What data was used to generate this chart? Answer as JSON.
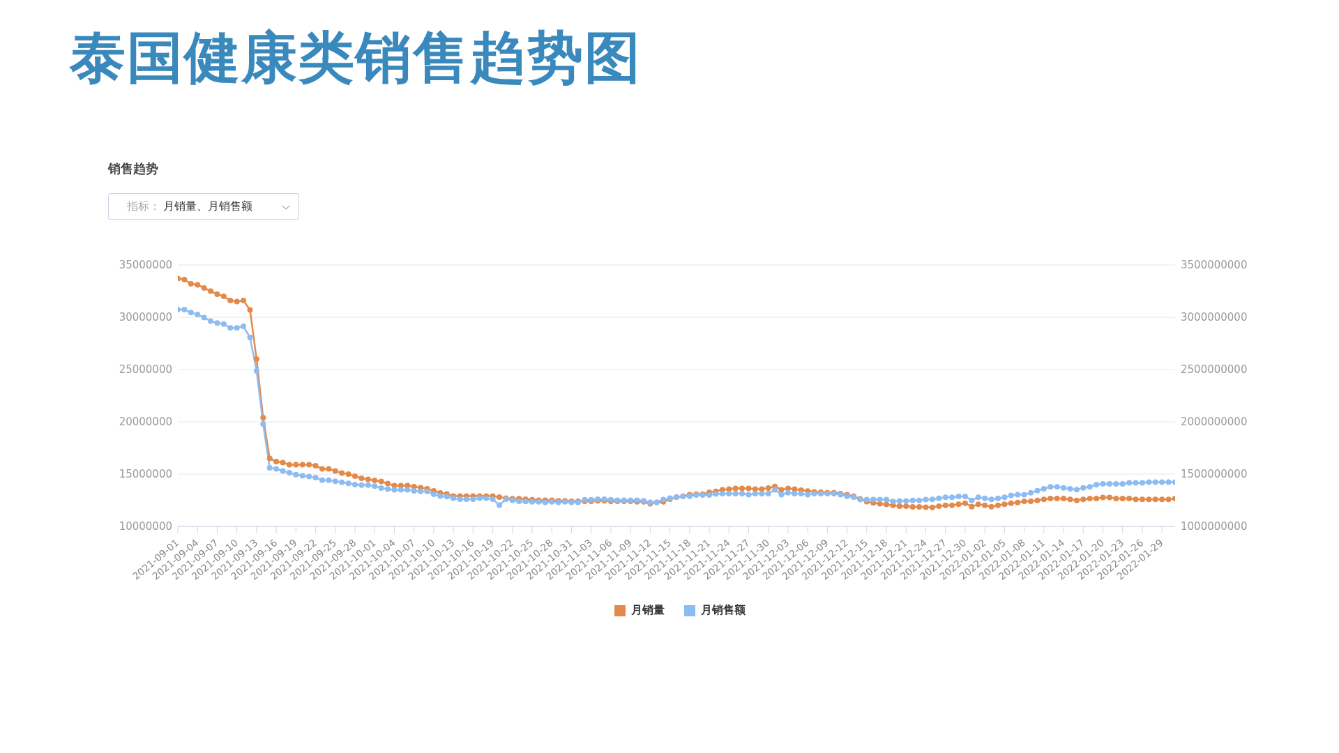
{
  "chart_data": {
    "type": "line",
    "title": "泰国健康类销售趋势图",
    "subtitle": "销售趋势",
    "annotations": [
      "指标：",
      "月销量、月销售额"
    ],
    "x": [
      "2021-09-01",
      "2021-09-02",
      "2021-09-03",
      "2021-09-04",
      "2021-09-05",
      "2021-09-06",
      "2021-09-07",
      "2021-09-08",
      "2021-09-09",
      "2021-09-10",
      "2021-09-11",
      "2021-09-12",
      "2021-09-13",
      "2021-09-14",
      "2021-09-15",
      "2021-09-16",
      "2021-09-17",
      "2021-09-18",
      "2021-09-19",
      "2021-09-20",
      "2021-09-21",
      "2021-09-22",
      "2021-09-23",
      "2021-09-24",
      "2021-09-25",
      "2021-09-26",
      "2021-09-27",
      "2021-09-28",
      "2021-09-29",
      "2021-09-30",
      "2021-10-01",
      "2021-10-02",
      "2021-10-03",
      "2021-10-04",
      "2021-10-05",
      "2021-10-06",
      "2021-10-07",
      "2021-10-08",
      "2021-10-09",
      "2021-10-10",
      "2021-10-11",
      "2021-10-12",
      "2021-10-13",
      "2021-10-14",
      "2021-10-15",
      "2021-10-16",
      "2021-10-17",
      "2021-10-18",
      "2021-10-19",
      "2021-10-20",
      "2021-10-21",
      "2021-10-22",
      "2021-10-23",
      "2021-10-24",
      "2021-10-25",
      "2021-10-26",
      "2021-10-27",
      "2021-10-28",
      "2021-10-29",
      "2021-10-30",
      "2021-10-31",
      "2021-11-01",
      "2021-11-02",
      "2021-11-03",
      "2021-11-04",
      "2021-11-05",
      "2021-11-06",
      "2021-11-07",
      "2021-11-08",
      "2021-11-09",
      "2021-11-10",
      "2021-11-11",
      "2021-11-12",
      "2021-11-13",
      "2021-11-14",
      "2021-11-15",
      "2021-11-16",
      "2021-11-17",
      "2021-11-18",
      "2021-11-19",
      "2021-11-20",
      "2021-11-21",
      "2021-11-22",
      "2021-11-23",
      "2021-11-24",
      "2021-11-25",
      "2021-11-26",
      "2021-11-27",
      "2021-11-28",
      "2021-11-29",
      "2021-11-30",
      "2021-12-01",
      "2021-12-02",
      "2021-12-03",
      "2021-12-04",
      "2021-12-05",
      "2021-12-06",
      "2021-12-07",
      "2021-12-08",
      "2021-12-09",
      "2021-12-10",
      "2021-12-11",
      "2021-12-12",
      "2021-12-13",
      "2021-12-14",
      "2021-12-15",
      "2021-12-16",
      "2021-12-17",
      "2021-12-18",
      "2021-12-19",
      "2021-12-20",
      "2021-12-21",
      "2021-12-22",
      "2021-12-23",
      "2021-12-24",
      "2021-12-25",
      "2021-12-26",
      "2021-12-27",
      "2021-12-28",
      "2021-12-29",
      "2021-12-30",
      "2021-12-31",
      "2022-01-01",
      "2022-01-02",
      "2022-01-03",
      "2022-01-04",
      "2022-01-05",
      "2022-01-06",
      "2022-01-07",
      "2022-01-08",
      "2022-01-09",
      "2022-01-10",
      "2022-01-11",
      "2022-01-12",
      "2022-01-13",
      "2022-01-14",
      "2022-01-15",
      "2022-01-16",
      "2022-01-17",
      "2022-01-18",
      "2022-01-19",
      "2022-01-20",
      "2022-01-21",
      "2022-01-22",
      "2022-01-23",
      "2022-01-24",
      "2022-01-25",
      "2022-01-26",
      "2022-01-27",
      "2022-01-28",
      "2022-01-29",
      "2022-01-30",
      "2022-01-31"
    ],
    "series": [
      {
        "name": "月销量",
        "color": "#e38a4a",
        "values": [
          33700000,
          33600000,
          33200000,
          33100000,
          32800000,
          32500000,
          32200000,
          32000000,
          31600000,
          31500000,
          31600000,
          30700000,
          26000000,
          20400000,
          16500000,
          16200000,
          16100000,
          15900000,
          15900000,
          15900000,
          15900000,
          15800000,
          15500000,
          15500000,
          15300000,
          15100000,
          15000000,
          14800000,
          14600000,
          14500000,
          14400000,
          14300000,
          14100000,
          13900000,
          13900000,
          13900000,
          13800000,
          13700000,
          13600000,
          13400000,
          13200000,
          13100000,
          12900000,
          12900000,
          12900000,
          12900000,
          12900000,
          12900000,
          12900000,
          12800000,
          12700000,
          12650000,
          12650000,
          12600000,
          12550000,
          12500000,
          12500000,
          12500000,
          12450000,
          12450000,
          12400000,
          12400000,
          12400000,
          12400000,
          12450000,
          12450000,
          12400000,
          12400000,
          12400000,
          12400000,
          12350000,
          12350000,
          12170000,
          12300000,
          12350000,
          12600000,
          12800000,
          12880000,
          13040000,
          13090000,
          13090000,
          13250000,
          13350000,
          13500000,
          13560000,
          13640000,
          13640000,
          13640000,
          13560000,
          13560000,
          13670000,
          13820000,
          13500000,
          13640000,
          13560000,
          13460000,
          13380000,
          13300000,
          13270000,
          13220000,
          13220000,
          13140000,
          13040000,
          12880000,
          12640000,
          12360000,
          12250000,
          12170000,
          12100000,
          12020000,
          11940000,
          11940000,
          11860000,
          11860000,
          11840000,
          11820000,
          11930000,
          12020000,
          12020000,
          12110000,
          12220000,
          11890000,
          12110000,
          12020000,
          11890000,
          12020000,
          12110000,
          12220000,
          12290000,
          12400000,
          12400000,
          12490000,
          12580000,
          12670000,
          12670000,
          12670000,
          12580000,
          12490000,
          12580000,
          12670000,
          12670000,
          12760000,
          12760000,
          12670000,
          12670000,
          12670000,
          12580000,
          12580000,
          12580000,
          12580000,
          12580000,
          12580000,
          12670000
        ]
      },
      {
        "name": "月销售额",
        "color": "#8dbcf2",
        "axis": "y2",
        "values": [
          3073000000,
          3073000000,
          3045000000,
          3026000000,
          2997000000,
          2963000000,
          2945000000,
          2935000000,
          2898000000,
          2898000000,
          2913000000,
          2806000000,
          2487000000,
          1979000000,
          1560000000,
          1550000000,
          1530000000,
          1513000000,
          1495000000,
          1485000000,
          1477000000,
          1466000000,
          1442000000,
          1442000000,
          1432000000,
          1421000000,
          1411000000,
          1400000000,
          1395000000,
          1395000000,
          1385000000,
          1367000000,
          1356000000,
          1350000000,
          1350000000,
          1350000000,
          1340000000,
          1335000000,
          1335000000,
          1306000000,
          1290000000,
          1285000000,
          1270000000,
          1260000000,
          1260000000,
          1260000000,
          1270000000,
          1270000000,
          1260000000,
          1204000000,
          1260000000,
          1250000000,
          1240000000,
          1238000000,
          1235000000,
          1235000000,
          1230000000,
          1235000000,
          1230000000,
          1235000000,
          1230000000,
          1230000000,
          1255000000,
          1255000000,
          1260000000,
          1260000000,
          1255000000,
          1250000000,
          1250000000,
          1250000000,
          1250000000,
          1245000000,
          1230000000,
          1230000000,
          1257000000,
          1270000000,
          1280000000,
          1288000000,
          1288000000,
          1300000000,
          1300000000,
          1300000000,
          1310000000,
          1314000000,
          1314000000,
          1314000000,
          1314000000,
          1304000000,
          1314000000,
          1314000000,
          1314000000,
          1350000000,
          1304000000,
          1322000000,
          1314000000,
          1314000000,
          1304000000,
          1314000000,
          1314000000,
          1314000000,
          1314000000,
          1304000000,
          1288000000,
          1280000000,
          1257000000,
          1257000000,
          1257000000,
          1257000000,
          1257000000,
          1238000000,
          1243000000,
          1243000000,
          1249000000,
          1249000000,
          1257000000,
          1258000000,
          1269000000,
          1278000000,
          1278000000,
          1287000000,
          1287000000,
          1249000000,
          1278000000,
          1269000000,
          1258000000,
          1269000000,
          1278000000,
          1296000000,
          1304000000,
          1304000000,
          1322000000,
          1342000000,
          1360000000,
          1378000000,
          1378000000,
          1369000000,
          1360000000,
          1351000000,
          1369000000,
          1378000000,
          1398000000,
          1407000000,
          1407000000,
          1407000000,
          1407000000,
          1416000000,
          1416000000,
          1416000000,
          1424000000,
          1424000000,
          1424000000,
          1424000000,
          1424000000
        ]
      }
    ],
    "xlim": [
      "2021-09-01",
      "2022-01-31"
    ],
    "xticks": [
      "2021-09-01",
      "2021-09-04",
      "2021-09-07",
      "2021-09-10",
      "2021-09-13",
      "2021-09-16",
      "2021-09-19",
      "2021-09-22",
      "2021-09-25",
      "2021-09-28",
      "2021-10-01",
      "2021-10-04",
      "2021-10-07",
      "2021-10-10",
      "2021-10-13",
      "2021-10-16",
      "2021-10-19",
      "2021-10-22",
      "2021-10-25",
      "2021-10-28",
      "2021-10-31",
      "2021-11-03",
      "2021-11-06",
      "2021-11-09",
      "2021-11-12",
      "2021-11-15",
      "2021-11-18",
      "2021-11-21",
      "2021-11-24",
      "2021-11-27",
      "2021-11-30",
      "2021-12-03",
      "2021-12-06",
      "2021-12-09",
      "2021-12-12",
      "2021-12-15",
      "2021-12-18",
      "2021-12-21",
      "2021-12-24",
      "2021-12-27",
      "2021-12-30",
      "2022-01-02",
      "2022-01-05",
      "2022-01-08",
      "2022-01-11",
      "2022-01-14",
      "2022-01-17",
      "2022-01-20",
      "2022-01-23",
      "2022-01-26",
      "2022-01-29"
    ],
    "ylim": [
      10000000,
      35000000
    ],
    "yticks": [
      10000000,
      15000000,
      20000000,
      25000000,
      30000000,
      35000000
    ],
    "y2lim": [
      1000000000,
      3500000000
    ],
    "y2ticks": [
      1000000000,
      1500000000,
      2000000000,
      2500000000,
      3000000000,
      3500000000
    ],
    "grid": "y",
    "legend": "bottom",
    "marker": "circle",
    "line_style": "solid"
  }
}
